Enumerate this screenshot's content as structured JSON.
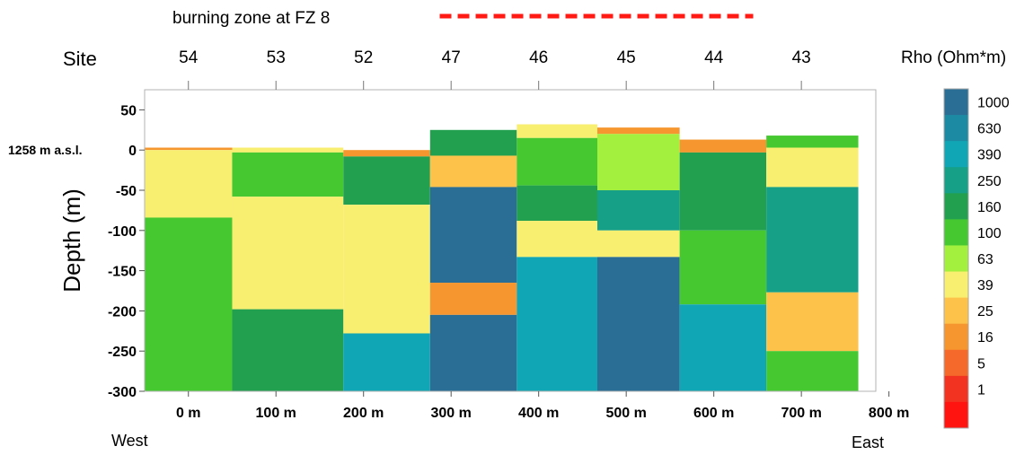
{
  "chart_data": {
    "type": "heatmap",
    "title": "",
    "annotation_burning": "burning zone at FZ 8",
    "burning_zone_x_range": [
      332,
      690
    ],
    "site_header": "Site",
    "sites": [
      {
        "label": "54",
        "x": 45
      },
      {
        "label": "53",
        "x": 145
      },
      {
        "label": "52",
        "x": 245
      },
      {
        "label": "47",
        "x": 345
      },
      {
        "label": "46",
        "x": 445
      },
      {
        "label": "45",
        "x": 545
      },
      {
        "label": "44",
        "x": 645
      },
      {
        "label": "43",
        "x": 745
      }
    ],
    "ylabel": "Depth (m)",
    "elevation_label": "1258 m a.s.l.",
    "elevation_value": 0,
    "west_label": "West",
    "east_label": "East",
    "xlim": [
      -5,
      830
    ],
    "ylim": [
      -300,
      75
    ],
    "x_ticks": [
      {
        "label": "0 m",
        "value": 45
      },
      {
        "label": "100 m",
        "value": 145
      },
      {
        "label": "200 m",
        "value": 245
      },
      {
        "label": "300 m",
        "value": 345
      },
      {
        "label": "400 m",
        "value": 445
      },
      {
        "label": "500 m",
        "value": 545
      },
      {
        "label": "600 m",
        "value": 645
      },
      {
        "label": "700 m",
        "value": 745
      },
      {
        "label": "800 m",
        "value": 845
      }
    ],
    "y_ticks": [
      50,
      0,
      -50,
      -100,
      -150,
      -200,
      -250,
      -300
    ],
    "legend_title": "Rho (Ohm*m)",
    "legend": [
      {
        "label": "1000",
        "color": "#2a6e96"
      },
      {
        "label": "630",
        "color": "#1d8aa3"
      },
      {
        "label": "390",
        "color": "#11a6b5"
      },
      {
        "label": "250",
        "color": "#17a088"
      },
      {
        "label": "160",
        "color": "#22a050"
      },
      {
        "label": "100",
        "color": "#45c830"
      },
      {
        "label": "63",
        "color": "#a4f03e"
      },
      {
        "label": "39",
        "color": "#f8ee70"
      },
      {
        "label": "25",
        "color": "#fcc24a"
      },
      {
        "label": "16",
        "color": "#f6962e"
      },
      {
        "label": "5",
        "color": "#f56a2a"
      },
      {
        "label": "1",
        "color": "#f23322"
      },
      {
        "label": "",
        "color": "#ff1410"
      }
    ],
    "columns": [
      {
        "x": [
          -5,
          95
        ],
        "layers": [
          {
            "top": 3,
            "bottom": 0,
            "color": "#f6962e"
          },
          {
            "top": 0,
            "bottom": -84,
            "color": "#f8ee70"
          },
          {
            "top": -84,
            "bottom": -300,
            "color": "#45c830"
          }
        ]
      },
      {
        "x": [
          95,
          222
        ],
        "layers": [
          {
            "top": 3,
            "bottom": -3,
            "color": "#f8ee70"
          },
          {
            "top": -3,
            "bottom": -58,
            "color": "#45c830"
          },
          {
            "top": -58,
            "bottom": -198,
            "color": "#f8ee70"
          },
          {
            "top": -198,
            "bottom": -300,
            "color": "#22a050"
          }
        ]
      },
      {
        "x": [
          222,
          321
        ],
        "layers": [
          {
            "top": 0,
            "bottom": -8,
            "color": "#f6962e"
          },
          {
            "top": -8,
            "bottom": -68,
            "color": "#22a050"
          },
          {
            "top": -68,
            "bottom": -228,
            "color": "#f8ee70"
          },
          {
            "top": -228,
            "bottom": -300,
            "color": "#11a6b5"
          }
        ]
      },
      {
        "x": [
          321,
          420
        ],
        "layers": [
          {
            "top": 25,
            "bottom": -7,
            "color": "#22a050"
          },
          {
            "top": -7,
            "bottom": -46,
            "color": "#fcc24a"
          },
          {
            "top": -46,
            "bottom": -165,
            "color": "#2a6e96"
          },
          {
            "top": -165,
            "bottom": -205,
            "color": "#f6962e"
          },
          {
            "top": -205,
            "bottom": -300,
            "color": "#2a6e96"
          }
        ]
      },
      {
        "x": [
          420,
          512
        ],
        "layers": [
          {
            "top": 32,
            "bottom": 15,
            "color": "#f8ee70"
          },
          {
            "top": 15,
            "bottom": -44,
            "color": "#45c830"
          },
          {
            "top": -44,
            "bottom": -88,
            "color": "#22a050"
          },
          {
            "top": -88,
            "bottom": -133,
            "color": "#f8ee70"
          },
          {
            "top": -133,
            "bottom": -300,
            "color": "#11a6b5"
          }
        ]
      },
      {
        "x": [
          512,
          606
        ],
        "layers": [
          {
            "top": 28,
            "bottom": 20,
            "color": "#f6962e"
          },
          {
            "top": 20,
            "bottom": -50,
            "color": "#a4f03e"
          },
          {
            "top": -50,
            "bottom": -100,
            "color": "#17a088"
          },
          {
            "top": -100,
            "bottom": -133,
            "color": "#f8ee70"
          },
          {
            "top": -133,
            "bottom": -300,
            "color": "#2a6e96"
          }
        ]
      },
      {
        "x": [
          606,
          705
        ],
        "layers": [
          {
            "top": 13,
            "bottom": -3,
            "color": "#f6962e"
          },
          {
            "top": -3,
            "bottom": -100,
            "color": "#22a050"
          },
          {
            "top": -100,
            "bottom": -192,
            "color": "#45c830"
          },
          {
            "top": -192,
            "bottom": -300,
            "color": "#11a6b5"
          }
        ]
      },
      {
        "x": [
          705,
          810
        ],
        "layers": [
          {
            "top": 18,
            "bottom": 3,
            "color": "#45c830"
          },
          {
            "top": 3,
            "bottom": -46,
            "color": "#f8ee70"
          },
          {
            "top": -46,
            "bottom": -177,
            "color": "#17a088"
          },
          {
            "top": -177,
            "bottom": -250,
            "color": "#fcc24a"
          },
          {
            "top": -250,
            "bottom": -300,
            "color": "#45c830"
          }
        ]
      }
    ]
  }
}
